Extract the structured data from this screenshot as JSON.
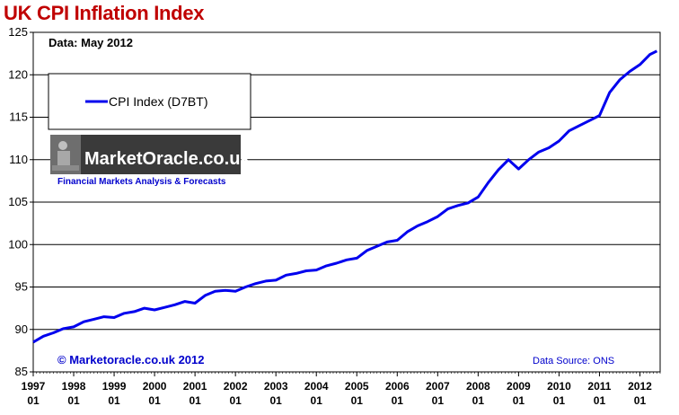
{
  "chart_data": {
    "type": "line",
    "title": "UK CPI Inflation Index",
    "subtitle": "Data: May 2012",
    "xlabel": "",
    "ylabel": "",
    "ylim": [
      85,
      125
    ],
    "yticks": [
      85,
      90,
      95,
      100,
      105,
      110,
      115,
      120,
      125
    ],
    "xlim": [
      1997.0,
      2012.5
    ],
    "xtick_years": [
      "1997",
      "1998",
      "1999",
      "2000",
      "2001",
      "2002",
      "2003",
      "2004",
      "2005",
      "2006",
      "2007",
      "2008",
      "2009",
      "2010",
      "2011",
      "2012"
    ],
    "xtick_month": "01",
    "grid": true,
    "legend_position": "top-left",
    "series": [
      {
        "name": "CPI Index (D7BT)",
        "color": "#0000ee",
        "points": [
          [
            1997.0,
            88.5
          ],
          [
            1997.25,
            89.2
          ],
          [
            1997.5,
            89.6
          ],
          [
            1997.75,
            90.1
          ],
          [
            1998.0,
            90.3
          ],
          [
            1998.25,
            90.9
          ],
          [
            1998.5,
            91.2
          ],
          [
            1998.75,
            91.5
          ],
          [
            1999.0,
            91.4
          ],
          [
            1999.25,
            91.9
          ],
          [
            1999.5,
            92.1
          ],
          [
            1999.75,
            92.5
          ],
          [
            2000.0,
            92.3
          ],
          [
            2000.25,
            92.6
          ],
          [
            2000.5,
            92.9
          ],
          [
            2000.75,
            93.3
          ],
          [
            2001.0,
            93.1
          ],
          [
            2001.25,
            94.0
          ],
          [
            2001.5,
            94.5
          ],
          [
            2001.75,
            94.6
          ],
          [
            2002.0,
            94.5
          ],
          [
            2002.25,
            95.0
          ],
          [
            2002.5,
            95.4
          ],
          [
            2002.75,
            95.7
          ],
          [
            2003.0,
            95.8
          ],
          [
            2003.25,
            96.4
          ],
          [
            2003.5,
            96.6
          ],
          [
            2003.75,
            96.9
          ],
          [
            2004.0,
            97.0
          ],
          [
            2004.25,
            97.5
          ],
          [
            2004.5,
            97.8
          ],
          [
            2004.75,
            98.2
          ],
          [
            2005.0,
            98.4
          ],
          [
            2005.25,
            99.3
          ],
          [
            2005.5,
            99.8
          ],
          [
            2005.75,
            100.3
          ],
          [
            2006.0,
            100.5
          ],
          [
            2006.25,
            101.5
          ],
          [
            2006.5,
            102.2
          ],
          [
            2006.75,
            102.7
          ],
          [
            2007.0,
            103.3
          ],
          [
            2007.25,
            104.2
          ],
          [
            2007.5,
            104.6
          ],
          [
            2007.75,
            104.9
          ],
          [
            2008.0,
            105.6
          ],
          [
            2008.25,
            107.3
          ],
          [
            2008.5,
            108.8
          ],
          [
            2008.75,
            110.0
          ],
          [
            2009.0,
            108.9
          ],
          [
            2009.25,
            110.0
          ],
          [
            2009.5,
            110.9
          ],
          [
            2009.75,
            111.4
          ],
          [
            2010.0,
            112.2
          ],
          [
            2010.25,
            113.4
          ],
          [
            2010.5,
            114.0
          ],
          [
            2010.75,
            114.6
          ],
          [
            2011.0,
            115.2
          ],
          [
            2011.25,
            117.9
          ],
          [
            2011.5,
            119.4
          ],
          [
            2011.75,
            120.4
          ],
          [
            2012.0,
            121.2
          ],
          [
            2012.25,
            122.4
          ],
          [
            2012.42,
            122.8
          ]
        ]
      }
    ]
  },
  "watermark": {
    "site": "MarketOracle.co.uk",
    "tagline": "Financial Markets Analysis & Forecasts"
  },
  "footer": {
    "copyright": "© Marketoracle.co.uk 2012",
    "source": "Data Source: ONS"
  }
}
